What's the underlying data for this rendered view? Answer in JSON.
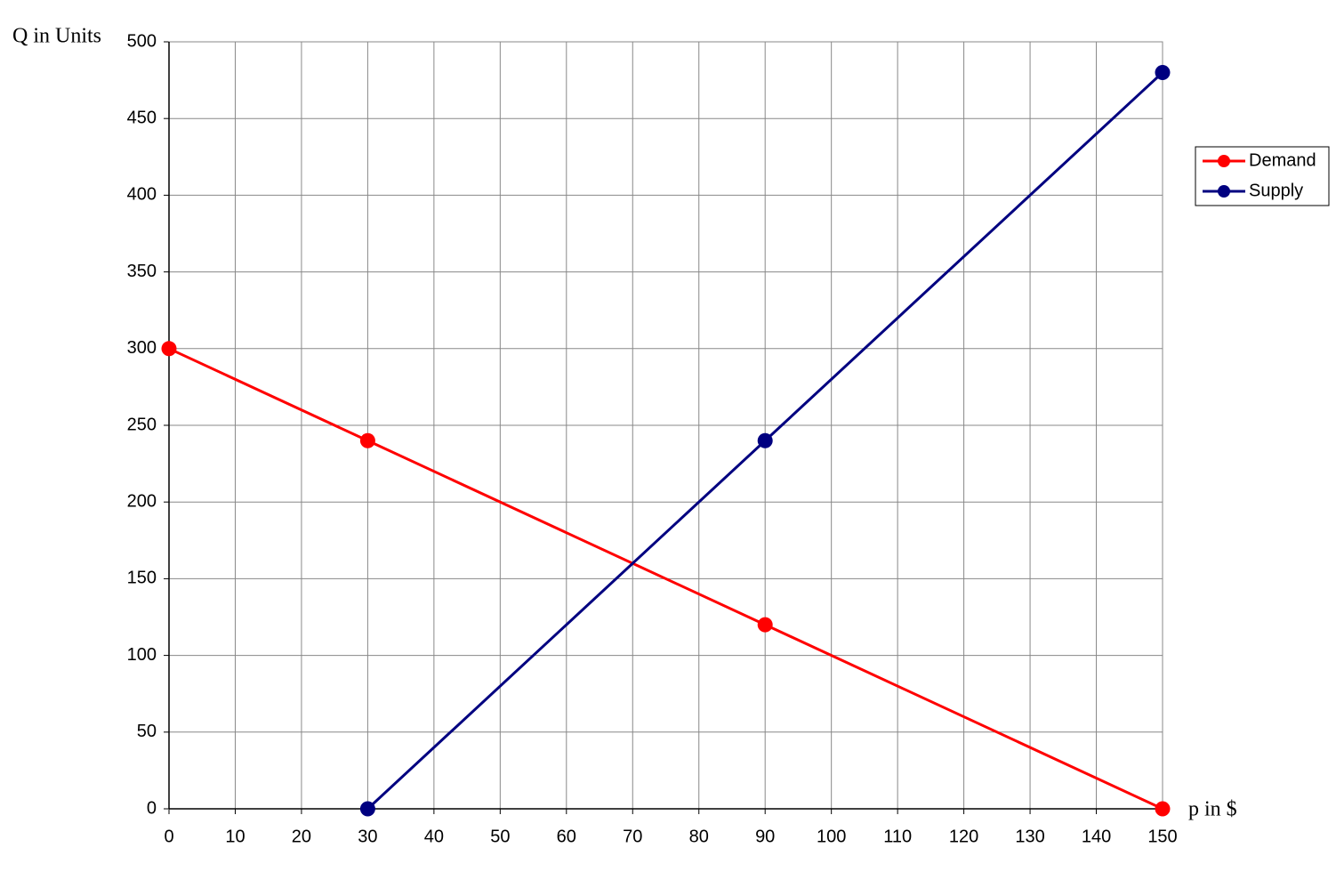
{
  "chart_data": {
    "type": "line",
    "xlabel": "p in $",
    "ylabel": "Q in Units",
    "series": [
      {
        "name": "Demand",
        "color": "#ff0000",
        "x": [
          0,
          30,
          90,
          150
        ],
        "values": [
          300,
          240,
          120,
          0
        ]
      },
      {
        "name": "Supply",
        "color": "#000080",
        "x": [
          30,
          90,
          150
        ],
        "values": [
          0,
          240,
          480
        ]
      }
    ],
    "xlim": [
      0,
      150
    ],
    "xticks": [
      0,
      10,
      20,
      30,
      40,
      50,
      60,
      70,
      80,
      90,
      100,
      110,
      120,
      130,
      140,
      150
    ],
    "ylim": [
      0,
      500
    ],
    "yticks": [
      0,
      50,
      100,
      150,
      200,
      250,
      300,
      350,
      400,
      450,
      500
    ],
    "grid": true,
    "legend": "right"
  }
}
